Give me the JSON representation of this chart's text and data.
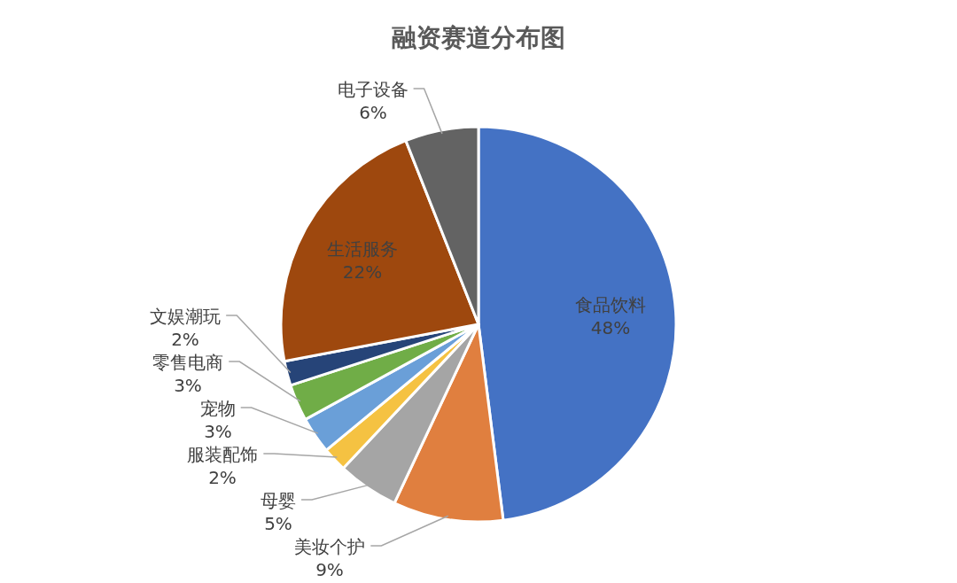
{
  "chart_data": {
    "type": "pie",
    "title": "融资赛道分布图",
    "categories": [
      "食品饮料",
      "美妆个护",
      "母婴",
      "服装配饰",
      "宠物",
      "零售电商",
      "文娱潮玩",
      "生活服务",
      "电子设备"
    ],
    "values": [
      48,
      9,
      5,
      2,
      3,
      3,
      2,
      22,
      6
    ],
    "value_labels": [
      "48%",
      "9%",
      "5%",
      "2%",
      "3%",
      "3%",
      "2%",
      "22%",
      "6%"
    ],
    "colors": [
      "#4472c4",
      "#e07f3f",
      "#a5a5a5",
      "#f5c242",
      "#6a9fd8",
      "#70ad47",
      "#264478",
      "#9e480e",
      "#636363"
    ],
    "legend": false
  }
}
